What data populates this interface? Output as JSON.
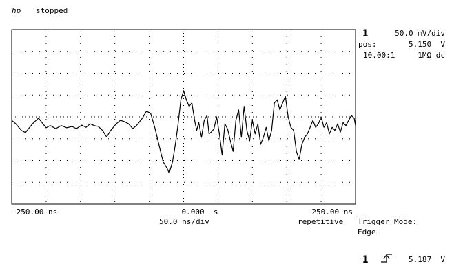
{
  "header": {
    "logo": "hp",
    "status": "stopped"
  },
  "channel": {
    "number": "1",
    "scale": "50.0 mV/div",
    "pos_label": "pos:",
    "pos": "5.150  V",
    "probe": "10.00:1",
    "coupling": "1MΩ dc"
  },
  "timebase": {
    "scale": "50.0 ns/div",
    "mode": "repetitive"
  },
  "trigger": {
    "mode_label": "Trigger Mode:",
    "mode": "Edge",
    "source": "1",
    "level": "5.187  V"
  },
  "chart_data": {
    "type": "line",
    "x": [
      -250,
      -244,
      -236,
      -230,
      -224,
      -218,
      -211,
      -206,
      -200,
      -194,
      -186,
      -178,
      -170,
      -162,
      -156,
      -148,
      -142,
      -136,
      -130,
      -124,
      -118,
      -112,
      -106,
      -98,
      -92,
      -86,
      -80,
      -74,
      -68,
      -60,
      -54,
      -48,
      -42,
      -36,
      -30,
      -24,
      -21,
      -16,
      -12,
      -8,
      -4,
      0,
      4,
      8,
      12,
      16,
      19,
      22,
      26,
      30,
      34,
      37,
      40,
      44,
      48,
      52,
      56,
      60,
      64,
      68,
      72,
      76,
      80,
      84,
      88,
      92,
      96,
      100,
      104,
      108,
      112,
      116,
      120,
      124,
      128,
      132,
      136,
      140,
      144,
      148,
      152,
      156,
      160,
      164,
      168,
      172,
      176,
      180,
      184,
      188,
      192,
      196,
      200,
      204,
      208,
      212,
      216,
      220,
      224,
      228,
      232,
      236,
      240,
      244,
      248,
      250
    ],
    "series": [
      {
        "color": "#000000",
        "values": [
          5.142,
          5.134,
          5.119,
          5.114,
          5.126,
          5.137,
          5.147,
          5.137,
          5.125,
          5.13,
          5.123,
          5.13,
          5.125,
          5.128,
          5.123,
          5.131,
          5.126,
          5.134,
          5.13,
          5.128,
          5.119,
          5.104,
          5.119,
          5.134,
          5.142,
          5.139,
          5.134,
          5.123,
          5.131,
          5.147,
          5.163,
          5.158,
          5.126,
          5.087,
          5.048,
          5.032,
          5.021,
          5.048,
          5.087,
          5.134,
          5.189,
          5.21,
          5.189,
          5.174,
          5.182,
          5.142,
          5.119,
          5.137,
          5.103,
          5.142,
          5.153,
          5.111,
          5.115,
          5.122,
          5.15,
          5.111,
          5.063,
          5.134,
          5.122,
          5.095,
          5.071,
          5.142,
          5.166,
          5.103,
          5.174,
          5.119,
          5.095,
          5.142,
          5.111,
          5.134,
          5.087,
          5.103,
          5.126,
          5.095,
          5.119,
          5.182,
          5.189,
          5.166,
          5.182,
          5.197,
          5.15,
          5.126,
          5.119,
          5.071,
          5.052,
          5.087,
          5.103,
          5.111,
          5.126,
          5.142,
          5.126,
          5.134,
          5.15,
          5.126,
          5.137,
          5.111,
          5.126,
          5.119,
          5.134,
          5.115,
          5.137,
          5.13,
          5.142,
          5.153,
          5.147,
          5.13
        ]
      }
    ],
    "xlim": [
      -250,
      250
    ],
    "ylim": [
      4.95,
      5.35
    ],
    "xticks": [
      {
        "value": -250,
        "label": "−250.00 ns"
      },
      {
        "value": -200,
        "label": null
      },
      {
        "value": -150,
        "label": null
      },
      {
        "value": -100,
        "label": null
      },
      {
        "value": -50,
        "label": null
      },
      {
        "value": 0,
        "label": "0.000  s"
      },
      {
        "value": 50,
        "label": null
      },
      {
        "value": 100,
        "label": null
      },
      {
        "value": 150,
        "label": null
      },
      {
        "value": 200,
        "label": null
      },
      {
        "value": 250,
        "label": "250.00 ns"
      }
    ],
    "yticks": [
      {
        "value": 4.95,
        "label": null
      },
      {
        "value": 5.0,
        "label": null
      },
      {
        "value": 5.05,
        "label": null
      },
      {
        "value": 5.1,
        "label": null
      },
      {
        "value": 5.15,
        "label": null
      },
      {
        "value": 5.2,
        "label": null
      },
      {
        "value": 5.25,
        "label": null
      },
      {
        "value": 5.3,
        "label": null
      },
      {
        "value": 5.35,
        "label": null
      }
    ],
    "grid": true
  }
}
